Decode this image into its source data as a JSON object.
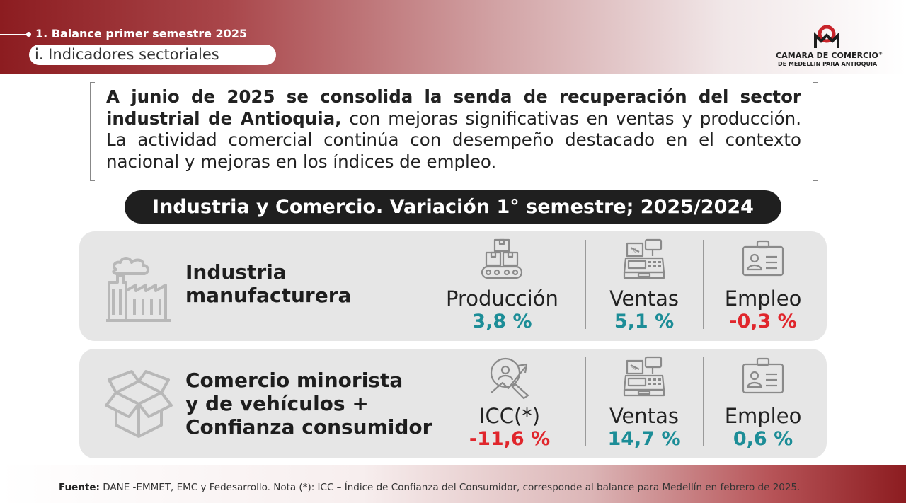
{
  "header": {
    "section": "1. Balance primer semestre 2025",
    "subsection": "i. Indicadores sectoriales",
    "logo_line1": "CAMARA DE COMERCIO",
    "logo_reg": "®",
    "logo_line2": "DE MEDELLIN PARA ANTIOQUIA"
  },
  "statement": {
    "bold": "A junio de 2025 se consolida la senda de recuperación del sector industrial de Antioquia,",
    "rest": " con mejoras significativas en ventas y producción. La actividad comercial continúa con desempeño destacado en el contexto nacional y mejoras en los índices de empleo."
  },
  "title": "Industria y Comercio. Variación 1° semestre; 2025/2024",
  "rows": [
    {
      "label_line1": "Industria",
      "label_line2": "manufacturera",
      "metrics": [
        {
          "name": "Producción",
          "value": "3,8 %",
          "icon": "conveyor-boxes-icon"
        },
        {
          "name": "Ventas",
          "value": "5,1 %",
          "icon": "cash-register-icon"
        },
        {
          "name": "Empleo",
          "value": "-0,3 %",
          "icon": "id-card-icon"
        }
      ]
    },
    {
      "label_line1": "Comercio minorista",
      "label_line2": "y de vehículos +",
      "label_line3": "Confianza consumidor",
      "metrics": [
        {
          "name": "ICC(*)",
          "value": "-11,6 %",
          "icon": "target-growth-icon"
        },
        {
          "name": "Ventas",
          "value": "14,7 %",
          "icon": "cash-register-icon"
        },
        {
          "name": "Empleo",
          "value": "0,6 %",
          "icon": "id-card-icon"
        }
      ]
    }
  ],
  "colors": {
    "positive": "#1c8d97",
    "negative": "#e0262c",
    "brand": "#8c1c20"
  },
  "footer": {
    "label": "Fuente:",
    "text": " DANE -EMMET, EMC y Fedesarrollo. Nota (*): ICC – Índice de Confianza del Consumidor, corresponde al balance para Medellín en febrero de 2025."
  }
}
